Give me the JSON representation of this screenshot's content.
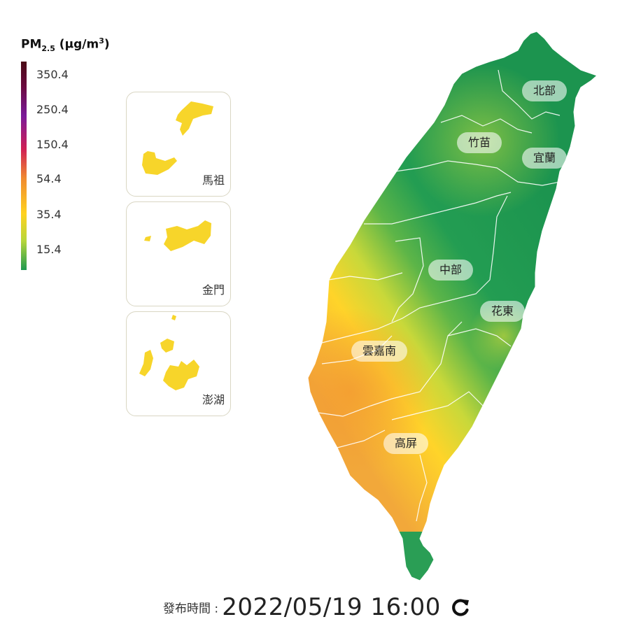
{
  "legend": {
    "title": "PM",
    "title_sub": "2.5",
    "title_unit_open": " (µg/m",
    "title_sup": "3",
    "title_unit_close": ")",
    "ticks": [
      "350.4",
      "250.4",
      "150.4",
      "54.4",
      "35.4",
      "15.4"
    ]
  },
  "insets": [
    {
      "label": "馬祖"
    },
    {
      "label": "金門"
    },
    {
      "label": "澎湖"
    }
  ],
  "regions": [
    {
      "label": "北部"
    },
    {
      "label": "竹苗"
    },
    {
      "label": "宜蘭"
    },
    {
      "label": "中部"
    },
    {
      "label": "花東"
    },
    {
      "label": "雲嘉南"
    },
    {
      "label": "高屏"
    }
  ],
  "footer": {
    "label": "發布時間 :",
    "timestamp": "2022/05/19 16:00"
  },
  "colors": {
    "good": "#1f9a50",
    "moderate": "#ffd21f",
    "usg": "#f0a232",
    "unhealthy": "#d02055",
    "very_unhealthy": "#7a1a9a",
    "hazardous": "#4a0b16"
  },
  "icons": {
    "refresh": "refresh-icon"
  }
}
